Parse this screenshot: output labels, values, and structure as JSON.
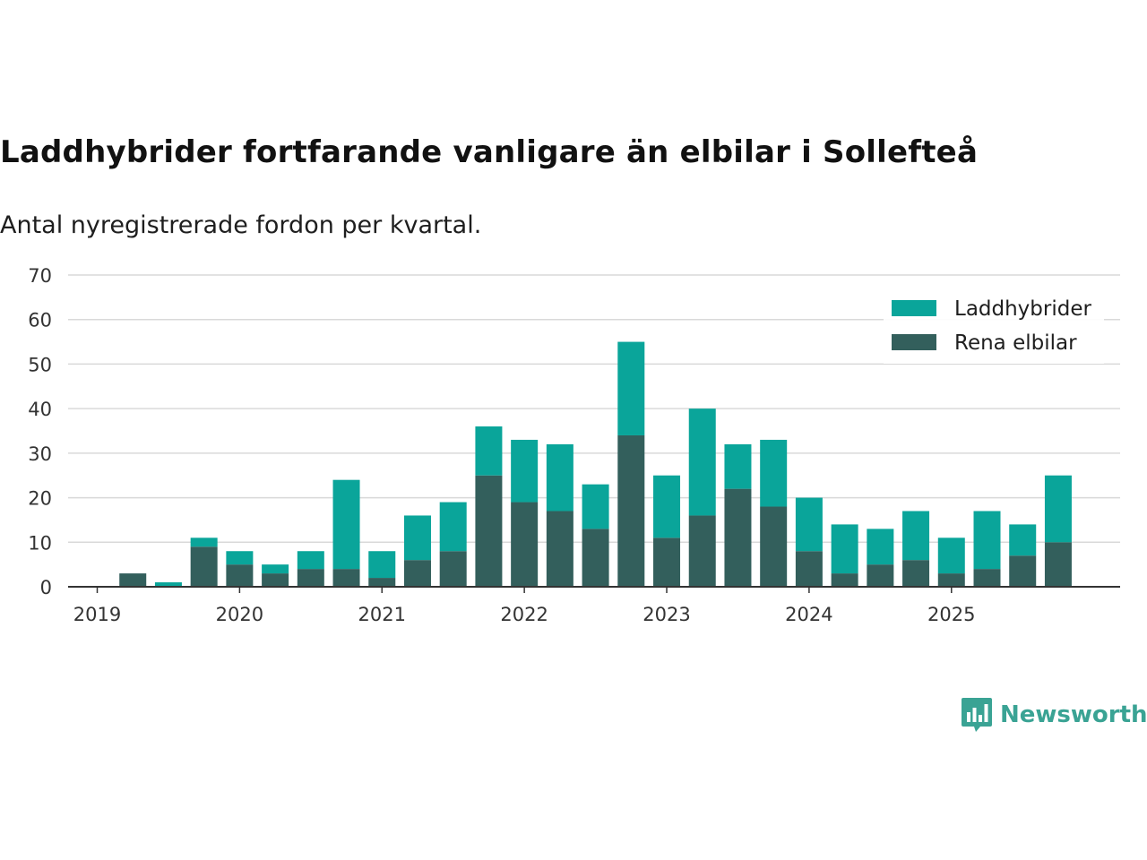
{
  "chart_data": {
    "type": "bar",
    "stacked": true,
    "title": "Laddhybrider fortfarande vanligare än elbilar i Sollefteå",
    "subtitle": "Antal nyregistrerade fordon per kvartal.",
    "xlabel": "",
    "ylabel": "",
    "ylim": [
      0,
      70
    ],
    "yticks": [
      0,
      10,
      20,
      30,
      40,
      50,
      60,
      70
    ],
    "x_tick_labels": [
      "2019",
      "2020",
      "2021",
      "2022",
      "2023",
      "2024",
      "2025"
    ],
    "grid": true,
    "legend_position": "top-right",
    "categories": [
      "2019 Q1",
      "2019 Q2",
      "2019 Q3",
      "2019 Q4",
      "2020 Q1",
      "2020 Q2",
      "2020 Q3",
      "2020 Q4",
      "2021 Q1",
      "2021 Q2",
      "2021 Q3",
      "2021 Q4",
      "2022 Q1",
      "2022 Q2",
      "2022 Q3",
      "2022 Q4",
      "2023 Q1",
      "2023 Q2",
      "2023 Q3",
      "2023 Q4",
      "2024 Q1",
      "2024 Q2",
      "2024 Q3",
      "2024 Q4",
      "2025 Q1",
      "2025 Q2",
      "2025 Q3",
      "2025 Q4"
    ],
    "series": [
      {
        "name": "Rena elbilar",
        "color": "#335f5c",
        "values": [
          0,
          3,
          0,
          9,
          5,
          3,
          4,
          4,
          2,
          6,
          8,
          25,
          19,
          17,
          13,
          34,
          11,
          16,
          22,
          18,
          8,
          3,
          5,
          6,
          3,
          4,
          7,
          10
        ]
      },
      {
        "name": "Laddhybrider",
        "color": "#0aa59a",
        "values": [
          0,
          0,
          1,
          2,
          3,
          2,
          4,
          20,
          6,
          10,
          11,
          11,
          14,
          15,
          10,
          21,
          14,
          24,
          10,
          15,
          12,
          11,
          8,
          11,
          8,
          13,
          7,
          15
        ]
      }
    ],
    "legend_order": [
      "Laddhybrider",
      "Rena elbilar"
    ]
  },
  "brand": {
    "name": "Newsworthy",
    "color": "#3aa394",
    "icon": "newsworthy-logo-icon"
  }
}
